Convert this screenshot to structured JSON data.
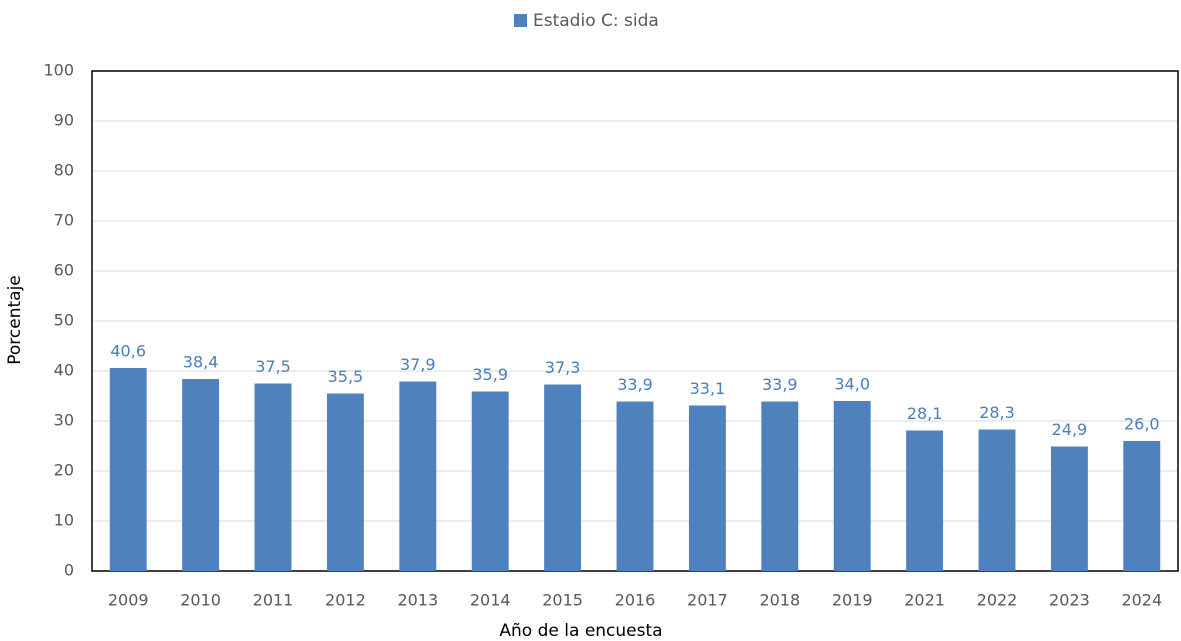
{
  "chart_data": {
    "type": "bar",
    "legend": "top",
    "x_label": "Año de la encuesta",
    "y_label": "Porcentaje",
    "categories": [
      "2009",
      "2010",
      "2011",
      "2012",
      "2013",
      "2014",
      "2015",
      "2016",
      "2017",
      "2018",
      "2019",
      "2021",
      "2022",
      "2023",
      "2024"
    ],
    "series": [
      {
        "name": "Estadio C: sida",
        "color": "#4f81bd",
        "values": [
          40.6,
          38.4,
          37.5,
          35.5,
          37.9,
          35.9,
          37.3,
          33.9,
          33.1,
          33.9,
          34.0,
          28.1,
          28.3,
          24.9,
          26.0
        ],
        "value_labels": [
          "40,6",
          "38,4",
          "37,5",
          "35,5",
          "37,9",
          "35,9",
          "37,3",
          "33,9",
          "33,1",
          "33,9",
          "34,0",
          "28,1",
          "28,3",
          "24,9",
          "26,0"
        ]
      }
    ],
    "ylim": [
      0,
      100
    ],
    "yticks": [
      0,
      10,
      20,
      30,
      40,
      50,
      60,
      70,
      80,
      90,
      100
    ],
    "grid": true
  }
}
